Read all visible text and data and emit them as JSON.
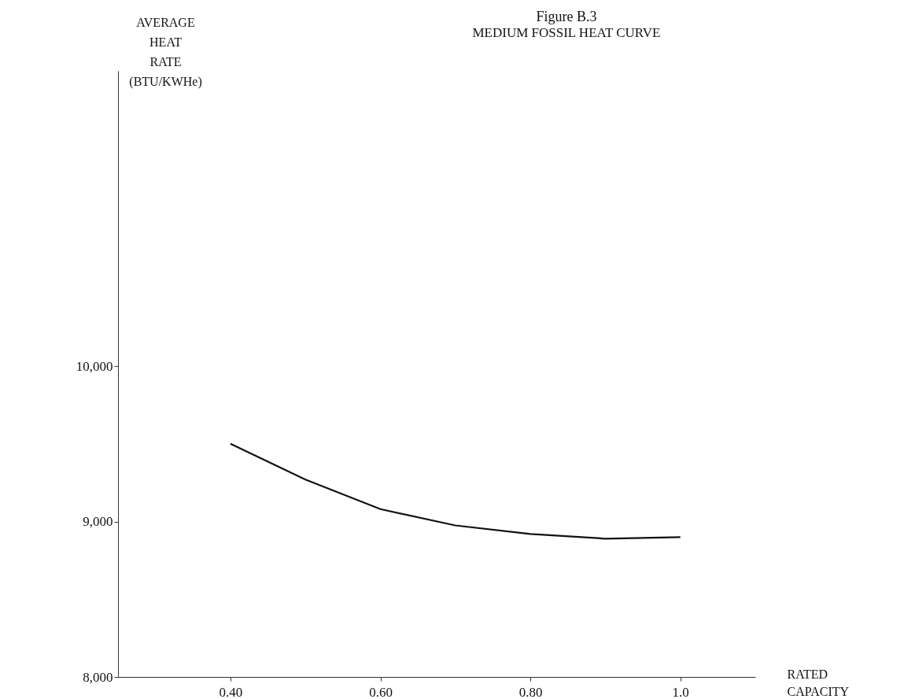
{
  "chart_data": {
    "type": "line",
    "title": "Figure B.3",
    "subtitle": "MEDIUM FOSSIL HEAT CURVE",
    "xlabel": "RATED CAPACITY",
    "ylabel": "AVERAGE HEAT RATE (BTU/KWHe)",
    "x": [
      0.4,
      0.5,
      0.6,
      0.7,
      0.8,
      0.9,
      1.0
    ],
    "series": [
      {
        "color": "#111111",
        "values": [
          9500,
          9270,
          9080,
          8975,
          8920,
          8890,
          8900
        ]
      }
    ],
    "xlim": [
      0.25,
      1.1
    ],
    "ylim": [
      8000,
      11900
    ],
    "xticks": [
      {
        "value": 0.4,
        "label": "0.40"
      },
      {
        "value": 0.6,
        "label": "0.60"
      },
      {
        "value": 0.8,
        "label": "0.80"
      },
      {
        "value": 1.0,
        "label": "1.0"
      }
    ],
    "yticks": [
      {
        "value": 8000,
        "label": "8,000"
      },
      {
        "value": 9000,
        "label": "9,000"
      },
      {
        "value": 10000,
        "label": "10,000"
      }
    ],
    "grid": false,
    "marker": "none",
    "line_style": "solid"
  }
}
